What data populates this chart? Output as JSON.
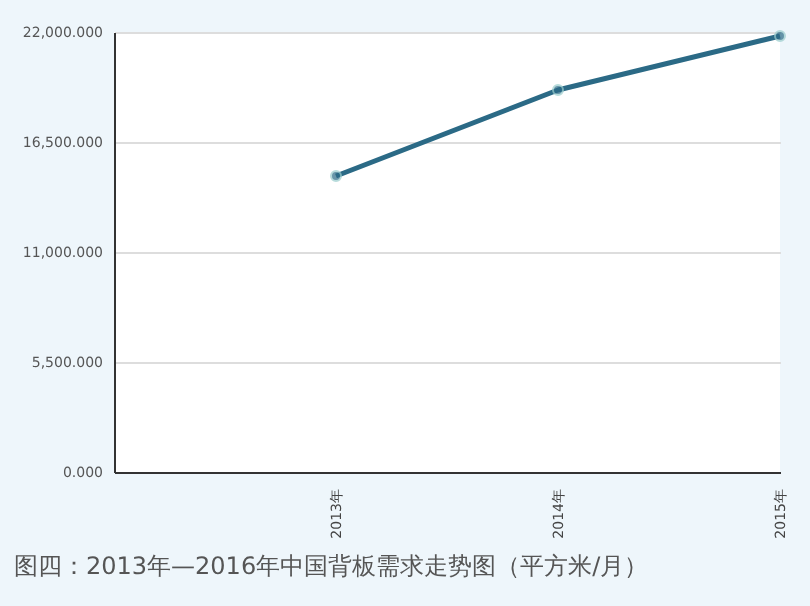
{
  "chart_data": {
    "type": "line",
    "categories": [
      null,
      "2013年",
      "2014年",
      "2015年"
    ],
    "series": [
      {
        "color": "#2b6a86",
        "values": [
          null,
          14800,
          19100,
          21800
        ]
      }
    ],
    "ylim": [
      0,
      22000
    ],
    "yticks": [
      {
        "value": 0,
        "label": "0.000"
      },
      {
        "value": 5500,
        "label": "5,500.000"
      },
      {
        "value": 11000,
        "label": "11,000.000"
      },
      {
        "value": 16500,
        "label": "16,500.000"
      },
      {
        "value": 22000,
        "label": "22,000.000"
      }
    ],
    "grid": "y",
    "marker": "circle",
    "line_style": "solid",
    "annotations": [
      "图四：2013年—2016年中国背板需求走势图（平方米/月）"
    ]
  }
}
